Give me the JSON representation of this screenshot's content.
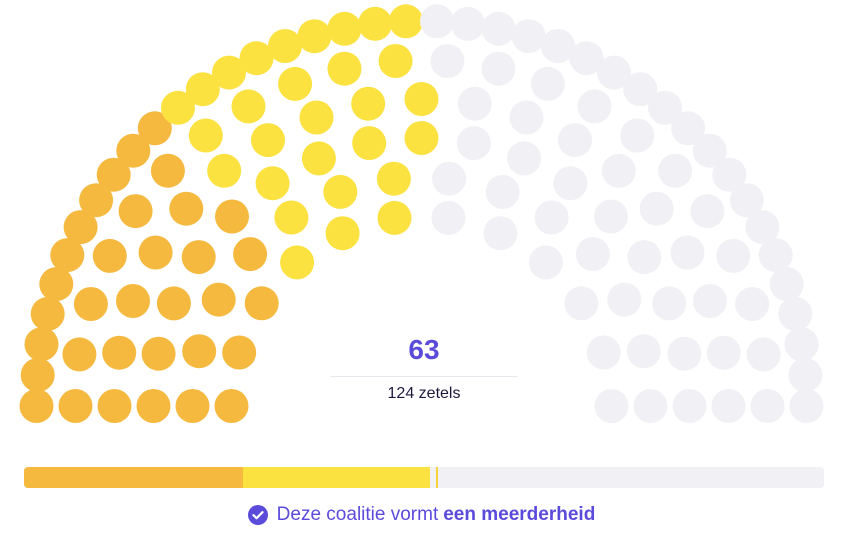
{
  "chart_data": {
    "type": "parliament",
    "seats_total": 124,
    "coalition_seats": 63,
    "total_label": "124 zetels",
    "series": [
      {
        "seats": 34,
        "color": "#f5b93f"
      },
      {
        "seats": 29,
        "color": "#fbe240"
      },
      {
        "seats": 61,
        "color": "#f0f0f5"
      }
    ],
    "majority_threshold": 63
  },
  "status": {
    "icon": "check-circle-icon",
    "text_prefix": "Deze coalitie vormt",
    "text_strong": "een meerderheid",
    "color": "#5b4bdb"
  }
}
